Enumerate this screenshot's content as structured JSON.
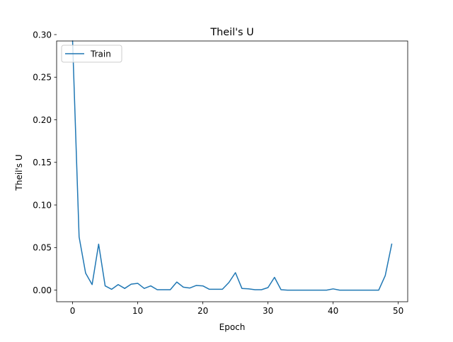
{
  "chart_data": {
    "type": "line",
    "title": "Theil's U",
    "xlabel": "Epoch",
    "ylabel": "Theil's U",
    "xlim": [
      -2.45,
      51.45
    ],
    "ylim": [
      -0.0136,
      0.2925
    ],
    "xticks": [
      0,
      10,
      20,
      30,
      40,
      50
    ],
    "xtick_labels": [
      "0",
      "10",
      "20",
      "30",
      "40",
      "50"
    ],
    "yticks": [
      0.0,
      0.05,
      0.1,
      0.15,
      0.2,
      0.25,
      0.3
    ],
    "ytick_labels": [
      "0.00",
      "0.05",
      "0.10",
      "0.15",
      "0.20",
      "0.25",
      "0.30"
    ],
    "grid": false,
    "legend": {
      "position": "top-left",
      "entries": [
        "Train"
      ]
    },
    "series": [
      {
        "name": "Train",
        "color": "#1f77b4",
        "x": [
          0,
          1,
          2,
          3,
          4,
          5,
          6,
          7,
          8,
          9,
          10,
          11,
          12,
          13,
          14,
          15,
          16,
          17,
          18,
          19,
          20,
          21,
          22,
          23,
          24,
          25,
          26,
          27,
          28,
          29,
          30,
          31,
          32,
          33,
          34,
          35,
          36,
          37,
          38,
          39,
          40,
          41,
          42,
          43,
          44,
          45,
          46,
          47,
          48,
          49
        ],
        "y": [
          0.2925,
          0.0625,
          0.02,
          0.0065,
          0.054,
          0.005,
          0.001,
          0.0065,
          0.002,
          0.007,
          0.008,
          0.002,
          0.005,
          0.0005,
          0.0005,
          0.0005,
          0.0095,
          0.0035,
          0.0025,
          0.0055,
          0.005,
          0.001,
          0.001,
          0.001,
          0.009,
          0.0205,
          0.002,
          0.0015,
          0.0005,
          0.0005,
          0.003,
          0.015,
          0.0005,
          0.0,
          0.0,
          0.0,
          0.0,
          0.0,
          0.0,
          0.0,
          0.0015,
          0.0,
          0.0,
          0.0,
          0.0,
          0.0,
          0.0,
          0.0,
          0.017,
          0.054
        ]
      }
    ]
  }
}
